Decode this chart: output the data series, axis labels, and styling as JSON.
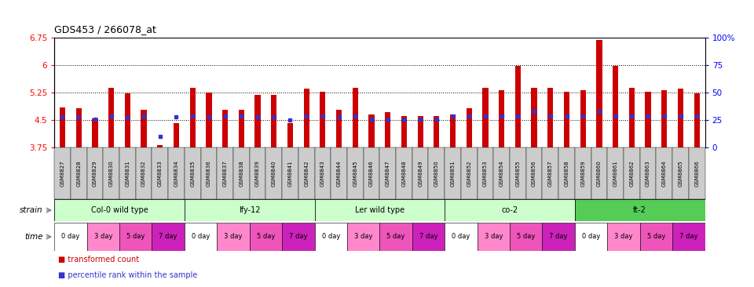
{
  "title": "GDS453 / 266078_at",
  "samples": [
    "GSM8827",
    "GSM8828",
    "GSM8829",
    "GSM8830",
    "GSM8831",
    "GSM8832",
    "GSM8833",
    "GSM8834",
    "GSM8835",
    "GSM8836",
    "GSM8837",
    "GSM8838",
    "GSM8839",
    "GSM8840",
    "GSM8841",
    "GSM8842",
    "GSM8843",
    "GSM8844",
    "GSM8845",
    "GSM8846",
    "GSM8847",
    "GSM8848",
    "GSM8849",
    "GSM8850",
    "GSM8851",
    "GSM8852",
    "GSM8853",
    "GSM8854",
    "GSM8855",
    "GSM8856",
    "GSM8857",
    "GSM8858",
    "GSM8859",
    "GSM8860",
    "GSM8861",
    "GSM8862",
    "GSM8863",
    "GSM8864",
    "GSM8865",
    "GSM8866"
  ],
  "bar_values": [
    4.85,
    4.82,
    4.55,
    5.38,
    5.22,
    4.78,
    3.82,
    4.42,
    5.38,
    5.25,
    4.78,
    4.78,
    5.18,
    5.18,
    4.42,
    5.35,
    5.28,
    4.78,
    5.38,
    4.65,
    4.72,
    4.62,
    4.62,
    4.62,
    4.65,
    4.82,
    5.38,
    5.32,
    5.98,
    5.38,
    5.38,
    5.28,
    5.32,
    6.68,
    5.98,
    5.38,
    5.28,
    5.32,
    5.35,
    5.22
  ],
  "percentile_values": [
    4.6,
    4.6,
    4.52,
    4.62,
    4.58,
    4.62,
    4.05,
    4.6,
    4.62,
    4.6,
    4.62,
    4.62,
    4.6,
    4.6,
    4.5,
    4.62,
    4.62,
    4.6,
    4.62,
    4.52,
    4.52,
    4.5,
    4.52,
    4.52,
    4.62,
    4.62,
    4.62,
    4.62,
    4.62,
    4.75,
    4.62,
    4.62,
    4.62,
    4.75,
    4.62,
    4.62,
    4.62,
    4.62,
    4.62,
    4.62
  ],
  "ylim": [
    3.75,
    6.75
  ],
  "yticks_left": [
    3.75,
    4.5,
    5.25,
    6.0,
    6.75
  ],
  "yticks_right_vals": [
    3.75,
    4.5,
    5.25,
    6.0,
    6.75
  ],
  "ytick_labels_left": [
    "3.75",
    "4.5",
    "5.25",
    "6",
    "6.75"
  ],
  "ytick_labels_right": [
    "0",
    "25",
    "50",
    "75",
    "100%"
  ],
  "grid_values": [
    4.5,
    5.25,
    6.0
  ],
  "bar_color": "#cc0000",
  "marker_color": "#3333cc",
  "bg_color": "#ffffff",
  "plot_bg": "#ffffff",
  "tick_bg_color": "#cccccc",
  "strains": [
    {
      "label": "Col-0 wild type",
      "start": 0,
      "end": 7,
      "color": "#ccffcc"
    },
    {
      "label": "lfy-12",
      "start": 8,
      "end": 15,
      "color": "#ccffcc"
    },
    {
      "label": "Ler wild type",
      "start": 16,
      "end": 23,
      "color": "#ccffcc"
    },
    {
      "label": "co-2",
      "start": 24,
      "end": 31,
      "color": "#ccffcc"
    },
    {
      "label": "ft-2",
      "start": 32,
      "end": 39,
      "color": "#55cc55"
    }
  ],
  "times": [
    {
      "label": "0 day",
      "color": "#ffffff"
    },
    {
      "label": "3 day",
      "color": "#ff88cc"
    },
    {
      "label": "5 day",
      "color": "#ee55bb"
    },
    {
      "label": "7 day",
      "color": "#cc22bb"
    }
  ],
  "legend_items": [
    {
      "label": "transformed count",
      "color": "#cc0000",
      "marker": "s"
    },
    {
      "label": "percentile rank within the sample",
      "color": "#3333cc",
      "marker": "s"
    }
  ]
}
